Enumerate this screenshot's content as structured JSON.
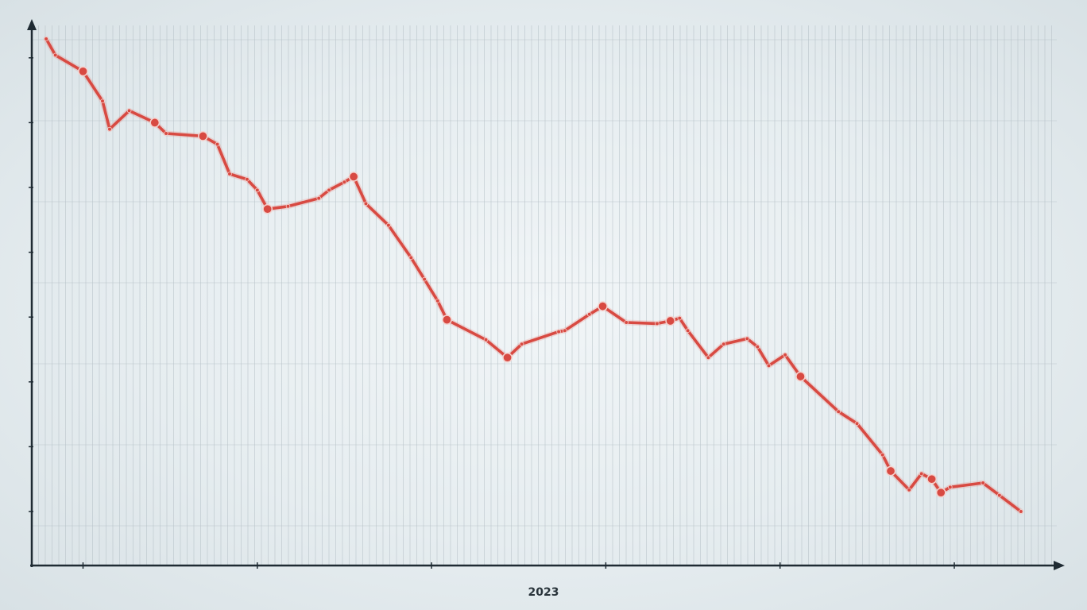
{
  "chart_data": {
    "type": "line",
    "title": "",
    "xlabel": "2023",
    "ylabel": "",
    "corner_label": "",
    "grid": true,
    "colors": {
      "line": "#d84a42",
      "line_light": "#e6786f",
      "grid": "#b7c2c8",
      "axis": "#1f2b33"
    },
    "xlim": [
      0,
      100
    ],
    "ylim": [
      0,
      100
    ],
    "x_ticks": [
      {
        "x": 5,
        "label": ""
      },
      {
        "x": 22,
        "label": ""
      },
      {
        "x": 39,
        "label": ""
      },
      {
        "x": 56,
        "label": ""
      },
      {
        "x": 73,
        "label": ""
      },
      {
        "x": 90,
        "label": ""
      }
    ],
    "y_ticks": [
      {
        "y": 10,
        "label": ""
      },
      {
        "y": 22,
        "label": ""
      },
      {
        "y": 34,
        "label": ""
      },
      {
        "y": 46,
        "label": ""
      },
      {
        "y": 58,
        "label": ""
      },
      {
        "y": 70,
        "label": ""
      },
      {
        "y": 82,
        "label": ""
      },
      {
        "y": 94,
        "label": ""
      }
    ],
    "series": [
      {
        "name": "",
        "values": [
          [
            1.4,
            97.5
          ],
          [
            2.3,
            94.5
          ],
          [
            5.0,
            91.5
          ],
          [
            6.9,
            86.0
          ],
          [
            7.6,
            80.8
          ],
          [
            9.5,
            84.2
          ],
          [
            12.0,
            82.0
          ],
          [
            13.1,
            80.0
          ],
          [
            16.7,
            79.5
          ],
          [
            18.1,
            78.0
          ],
          [
            19.3,
            72.5
          ],
          [
            21.0,
            71.5
          ],
          [
            22.0,
            69.5
          ],
          [
            23.0,
            66.0
          ],
          [
            25.0,
            66.5
          ],
          [
            28.0,
            68.0
          ],
          [
            29.0,
            69.5
          ],
          [
            30.5,
            71.0
          ],
          [
            31.4,
            72.0
          ],
          [
            32.6,
            67.0
          ],
          [
            34.8,
            63.0
          ],
          [
            37.0,
            57.0
          ],
          [
            38.3,
            53.0
          ],
          [
            39.6,
            49.0
          ],
          [
            40.5,
            45.5
          ],
          [
            44.3,
            41.8
          ],
          [
            46.4,
            38.5
          ],
          [
            47.8,
            41.0
          ],
          [
            51.4,
            43.3
          ],
          [
            52.0,
            43.5
          ],
          [
            54.4,
            46.5
          ],
          [
            55.7,
            48.0
          ],
          [
            58.0,
            45.0
          ],
          [
            61.0,
            44.8
          ],
          [
            62.3,
            45.3
          ],
          [
            63.2,
            45.8
          ],
          [
            64.0,
            43.5
          ],
          [
            66.0,
            38.5
          ],
          [
            67.5,
            41.0
          ],
          [
            69.8,
            42.0
          ],
          [
            70.8,
            40.5
          ],
          [
            71.9,
            37.0
          ],
          [
            73.5,
            39.0
          ],
          [
            75.0,
            35.0
          ],
          [
            78.7,
            28.5
          ],
          [
            80.5,
            26.3
          ],
          [
            83.0,
            20.5
          ],
          [
            83.8,
            17.5
          ],
          [
            85.6,
            14.0
          ],
          [
            86.8,
            17.0
          ],
          [
            87.8,
            16.0
          ],
          [
            88.7,
            13.5
          ],
          [
            89.6,
            14.5
          ],
          [
            92.8,
            15.3
          ],
          [
            94.4,
            13.0
          ],
          [
            96.5,
            10.0
          ]
        ]
      }
    ],
    "annotations": [
      {
        "x": 13.9,
        "y": 87.5,
        "lines": [
          "",
          ""
        ]
      },
      {
        "x": 67.4,
        "y": 30.5,
        "lines": [
          "",
          ""
        ]
      }
    ]
  }
}
